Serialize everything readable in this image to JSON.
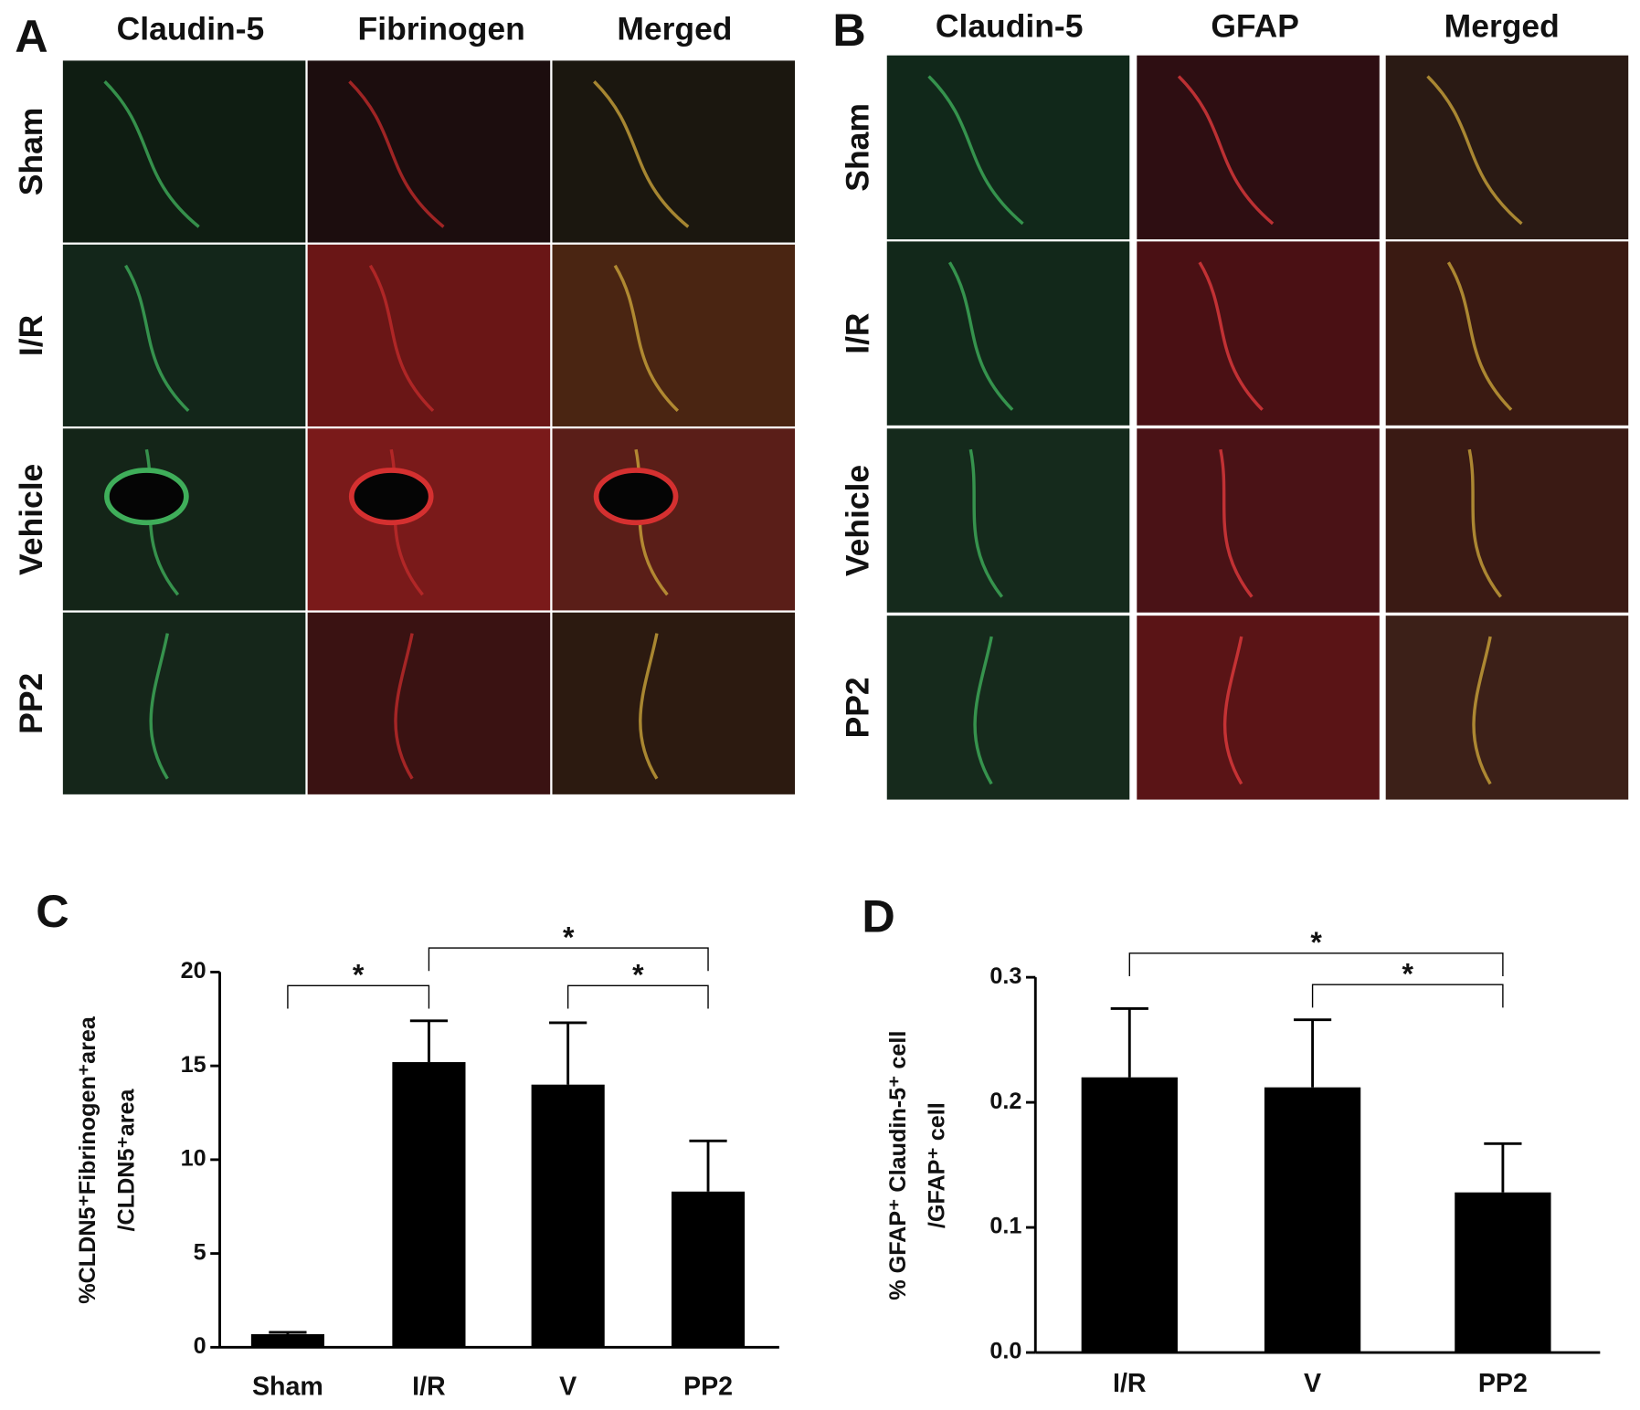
{
  "panels": [
    {
      "letter": "A",
      "columns": [
        "Claudin-5",
        "Fibrinogen",
        "Merged"
      ],
      "rows": [
        "Sham",
        "I/R",
        "Vehicle",
        "PP2"
      ]
    },
    {
      "letter": "B",
      "columns": [
        "Claudin-5",
        "GFAP",
        "Merged"
      ],
      "rows": [
        "Sham",
        "I/R",
        "Vehicle",
        "PP2"
      ]
    }
  ],
  "chart_data": [
    {
      "type": "bar",
      "letter": "C",
      "ylabel": [
        "%CLDN5⁺Fibrinogen⁺area",
        "/CLDN5⁺area"
      ],
      "categories": [
        "Sham",
        "I/R",
        "V",
        "PP2"
      ],
      "values": [
        0.7,
        15.2,
        14.0,
        8.3
      ],
      "errors": [
        0.1,
        2.2,
        3.3,
        2.7
      ],
      "color": "#000000",
      "ylim": [
        0,
        20
      ],
      "yticks": [
        0,
        5,
        10,
        15,
        20
      ],
      "annotations": [
        {
          "between": [
            "Sham",
            "I/R"
          ],
          "text": "*"
        },
        {
          "between": [
            "I/R",
            "PP2"
          ],
          "text": "*"
        },
        {
          "between": [
            "V",
            "PP2"
          ],
          "text": "*"
        }
      ]
    },
    {
      "type": "bar",
      "letter": "D",
      "ylabel": [
        "% GFAP⁺ Claudin-5⁺ cell",
        "/GFAP⁺ cell"
      ],
      "categories": [
        "I/R",
        "V",
        "PP2"
      ],
      "values": [
        0.22,
        0.212,
        0.128
      ],
      "errors": [
        0.055,
        0.054,
        0.039
      ],
      "color": "#000000",
      "ylim": [
        0,
        0.3
      ],
      "yticks": [
        {
          "value": 0,
          "label": "0.0"
        },
        0.1,
        0.2,
        0.3
      ],
      "annotations": [
        {
          "between": [
            "I/R",
            "PP2"
          ],
          "text": "*"
        },
        {
          "between": [
            "V",
            "PP2"
          ],
          "text": "*"
        }
      ]
    }
  ]
}
